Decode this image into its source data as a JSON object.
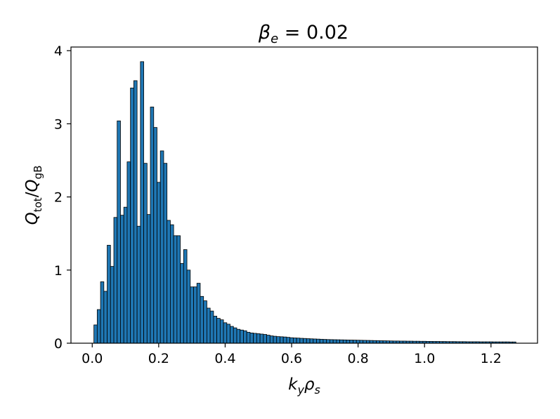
{
  "chart_data": {
    "type": "bar",
    "title_parts": {
      "symbol": "β",
      "subscript": "e",
      "rest": " = 0.02"
    },
    "xlabel_parts": {
      "k": "k",
      "k_sub": "y",
      "rho": "ρ",
      "rho_sub": "s"
    },
    "ylabel_parts": {
      "q1": "Q",
      "q1_sub": "tot",
      "slash": "/",
      "q2": "Q",
      "q2_sub": "gB"
    },
    "xlim": [
      -0.064,
      1.34
    ],
    "ylim": [
      0,
      4.05
    ],
    "xticks": [
      0.0,
      0.2,
      0.4,
      0.6,
      0.8,
      1.0,
      1.2
    ],
    "xtick_labels": [
      "0.0",
      "0.2",
      "0.4",
      "0.6",
      "0.8",
      "1.0",
      "1.2"
    ],
    "yticks": [
      0,
      1,
      2,
      3,
      4
    ],
    "ytick_labels": [
      "0",
      "1",
      "2",
      "3",
      "4"
    ],
    "bar_color": "#1f77b4",
    "edge_color": "#000000",
    "bin_width": 0.01,
    "x": [
      0.01,
      0.02,
      0.03,
      0.04,
      0.05,
      0.06,
      0.07,
      0.08,
      0.09,
      0.1,
      0.11,
      0.12,
      0.13,
      0.14,
      0.15,
      0.16,
      0.17,
      0.18,
      0.19,
      0.2,
      0.21,
      0.22,
      0.23,
      0.24,
      0.25,
      0.26,
      0.27,
      0.28,
      0.29,
      0.3,
      0.31,
      0.32,
      0.33,
      0.34,
      0.35,
      0.36,
      0.37,
      0.38,
      0.39,
      0.4,
      0.41,
      0.42,
      0.43,
      0.44,
      0.45,
      0.46,
      0.47,
      0.48,
      0.49,
      0.5,
      0.51,
      0.52,
      0.53,
      0.54,
      0.55,
      0.56,
      0.57,
      0.58,
      0.59,
      0.6,
      0.61,
      0.62,
      0.63,
      0.64,
      0.65,
      0.66,
      0.67,
      0.68,
      0.69,
      0.7,
      0.71,
      0.72,
      0.73,
      0.74,
      0.75,
      0.76,
      0.77,
      0.78,
      0.79,
      0.8,
      0.81,
      0.82,
      0.83,
      0.84,
      0.85,
      0.86,
      0.87,
      0.88,
      0.89,
      0.9,
      0.91,
      0.92,
      0.93,
      0.94,
      0.95,
      0.96,
      0.97,
      0.98,
      0.99,
      1.0,
      1.01,
      1.02,
      1.03,
      1.04,
      1.05,
      1.06,
      1.07,
      1.08,
      1.09,
      1.1,
      1.11,
      1.12,
      1.13,
      1.14,
      1.15,
      1.16,
      1.17,
      1.18,
      1.19,
      1.2,
      1.21,
      1.22,
      1.23,
      1.24,
      1.25,
      1.26,
      1.27
    ],
    "values": [
      0.25,
      0.46,
      0.84,
      0.71,
      1.34,
      1.05,
      1.72,
      3.04,
      1.75,
      1.86,
      2.48,
      3.49,
      3.59,
      1.6,
      3.85,
      2.46,
      1.76,
      3.23,
      2.95,
      2.2,
      2.63,
      2.46,
      1.68,
      1.62,
      1.47,
      1.47,
      1.09,
      1.28,
      1.0,
      0.77,
      0.77,
      0.82,
      0.64,
      0.58,
      0.48,
      0.44,
      0.37,
      0.34,
      0.32,
      0.28,
      0.26,
      0.23,
      0.21,
      0.19,
      0.18,
      0.17,
      0.15,
      0.14,
      0.135,
      0.13,
      0.125,
      0.12,
      0.11,
      0.1,
      0.095,
      0.09,
      0.088,
      0.085,
      0.08,
      0.075,
      0.072,
      0.07,
      0.067,
      0.065,
      0.062,
      0.06,
      0.058,
      0.056,
      0.054,
      0.052,
      0.05,
      0.049,
      0.048,
      0.047,
      0.046,
      0.045,
      0.044,
      0.043,
      0.042,
      0.041,
      0.04,
      0.039,
      0.038,
      0.037,
      0.036,
      0.035,
      0.034,
      0.033,
      0.032,
      0.031,
      0.03,
      0.03,
      0.029,
      0.029,
      0.028,
      0.028,
      0.027,
      0.027,
      0.026,
      0.026,
      0.025,
      0.025,
      0.024,
      0.024,
      0.023,
      0.023,
      0.022,
      0.022,
      0.022,
      0.021,
      0.021,
      0.021,
      0.02,
      0.02,
      0.02,
      0.02,
      0.019,
      0.019,
      0.019,
      0.019,
      0.018,
      0.018,
      0.018,
      0.018,
      0.018,
      0.017,
      0.017
    ]
  }
}
